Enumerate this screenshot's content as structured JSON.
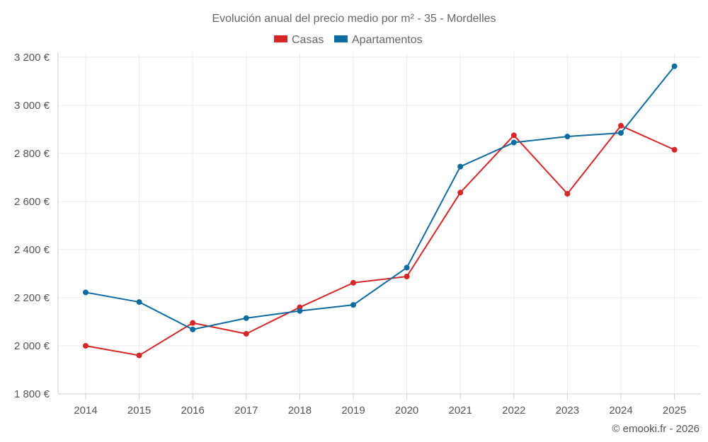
{
  "chart_data": {
    "type": "line",
    "title": "Evolución anual del precio medio por m² - 35 - Mordelles",
    "xlabel": "",
    "ylabel": "",
    "ylim": [
      1800,
      3220
    ],
    "y_ticks": [
      1800,
      2000,
      2200,
      2400,
      2600,
      2800,
      3000,
      3200
    ],
    "y_tick_labels": [
      "1 800 €",
      "2 000 €",
      "2 200 €",
      "2 400 €",
      "2 600 €",
      "2 800 €",
      "3 000 €",
      "3 200 €"
    ],
    "categories": [
      "2014",
      "2015",
      "2016",
      "2017",
      "2018",
      "2019",
      "2020",
      "2021",
      "2022",
      "2023",
      "2024",
      "2025"
    ],
    "series": [
      {
        "name": "Casas",
        "color": "#d62728",
        "values": [
          2000,
          1960,
          2095,
          2050,
          2160,
          2262,
          2288,
          2637,
          2875,
          2632,
          2915,
          2815
        ]
      },
      {
        "name": "Apartamentos",
        "color": "#0e6ba0",
        "values": [
          2222,
          2182,
          2068,
          2115,
          2145,
          2170,
          2325,
          2745,
          2845,
          2870,
          2885,
          3162
        ]
      }
    ],
    "legend_position": "top-center",
    "grid": true,
    "credit": "© emooki.fr - 2026"
  }
}
